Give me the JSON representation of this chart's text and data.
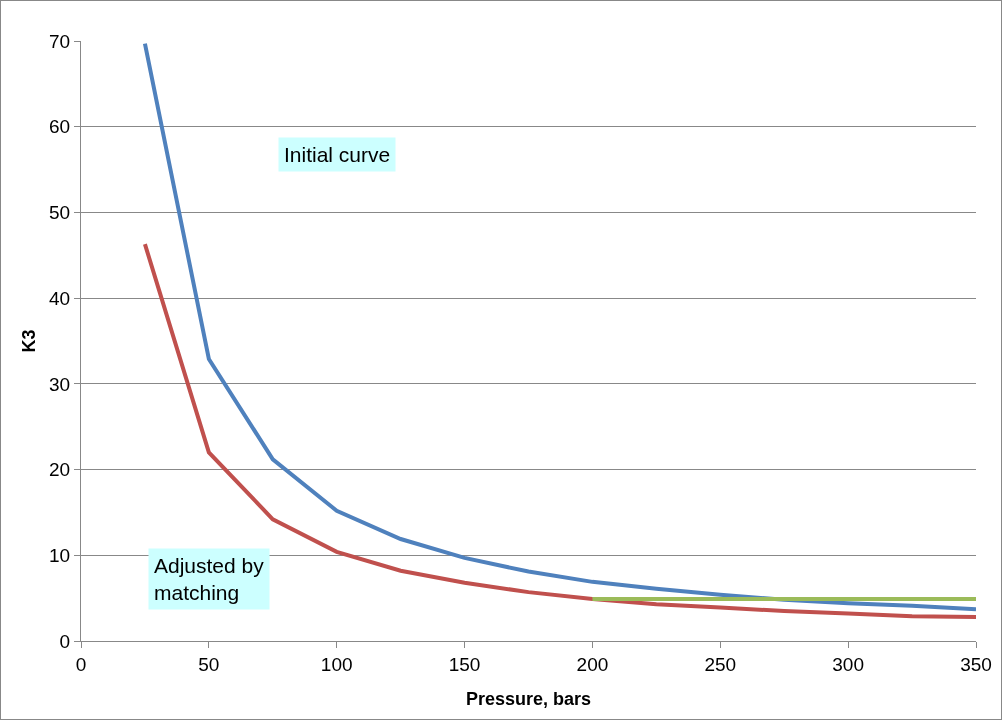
{
  "chart_data": {
    "type": "line",
    "xlabel": "Pressure, bars",
    "ylabel": "K3",
    "x": [
      25,
      50,
      75,
      100,
      125,
      150,
      175,
      200,
      225,
      250,
      275,
      300,
      325,
      350
    ],
    "series": [
      {
        "color": "#4f81bd",
        "values": [
          69.7,
          32.9,
          21.2,
          15.2,
          11.9,
          9.7,
          8.1,
          6.9,
          6.1,
          5.4,
          4.8,
          4.4,
          4.1,
          3.7
        ]
      },
      {
        "color": "#c0504d",
        "values": [
          46.3,
          22.0,
          14.2,
          10.4,
          8.2,
          6.8,
          5.7,
          4.9,
          4.3,
          3.9,
          3.5,
          3.2,
          2.9,
          2.8
        ]
      },
      {
        "color": "#9bbb59",
        "x": [
          200,
          350
        ],
        "values": [
          4.9,
          4.9
        ]
      }
    ],
    "xlim": [
      0,
      350
    ],
    "xticks": [
      0,
      50,
      100,
      150,
      200,
      250,
      300,
      350
    ],
    "ylim": [
      0,
      70
    ],
    "yticks": [
      0,
      10,
      20,
      30,
      40,
      50,
      60,
      70
    ],
    "grid": "y",
    "legend": false,
    "marker": "none",
    "line_style": "solid",
    "annotations": [
      "Initial curve",
      "Adjusted by matching"
    ]
  }
}
